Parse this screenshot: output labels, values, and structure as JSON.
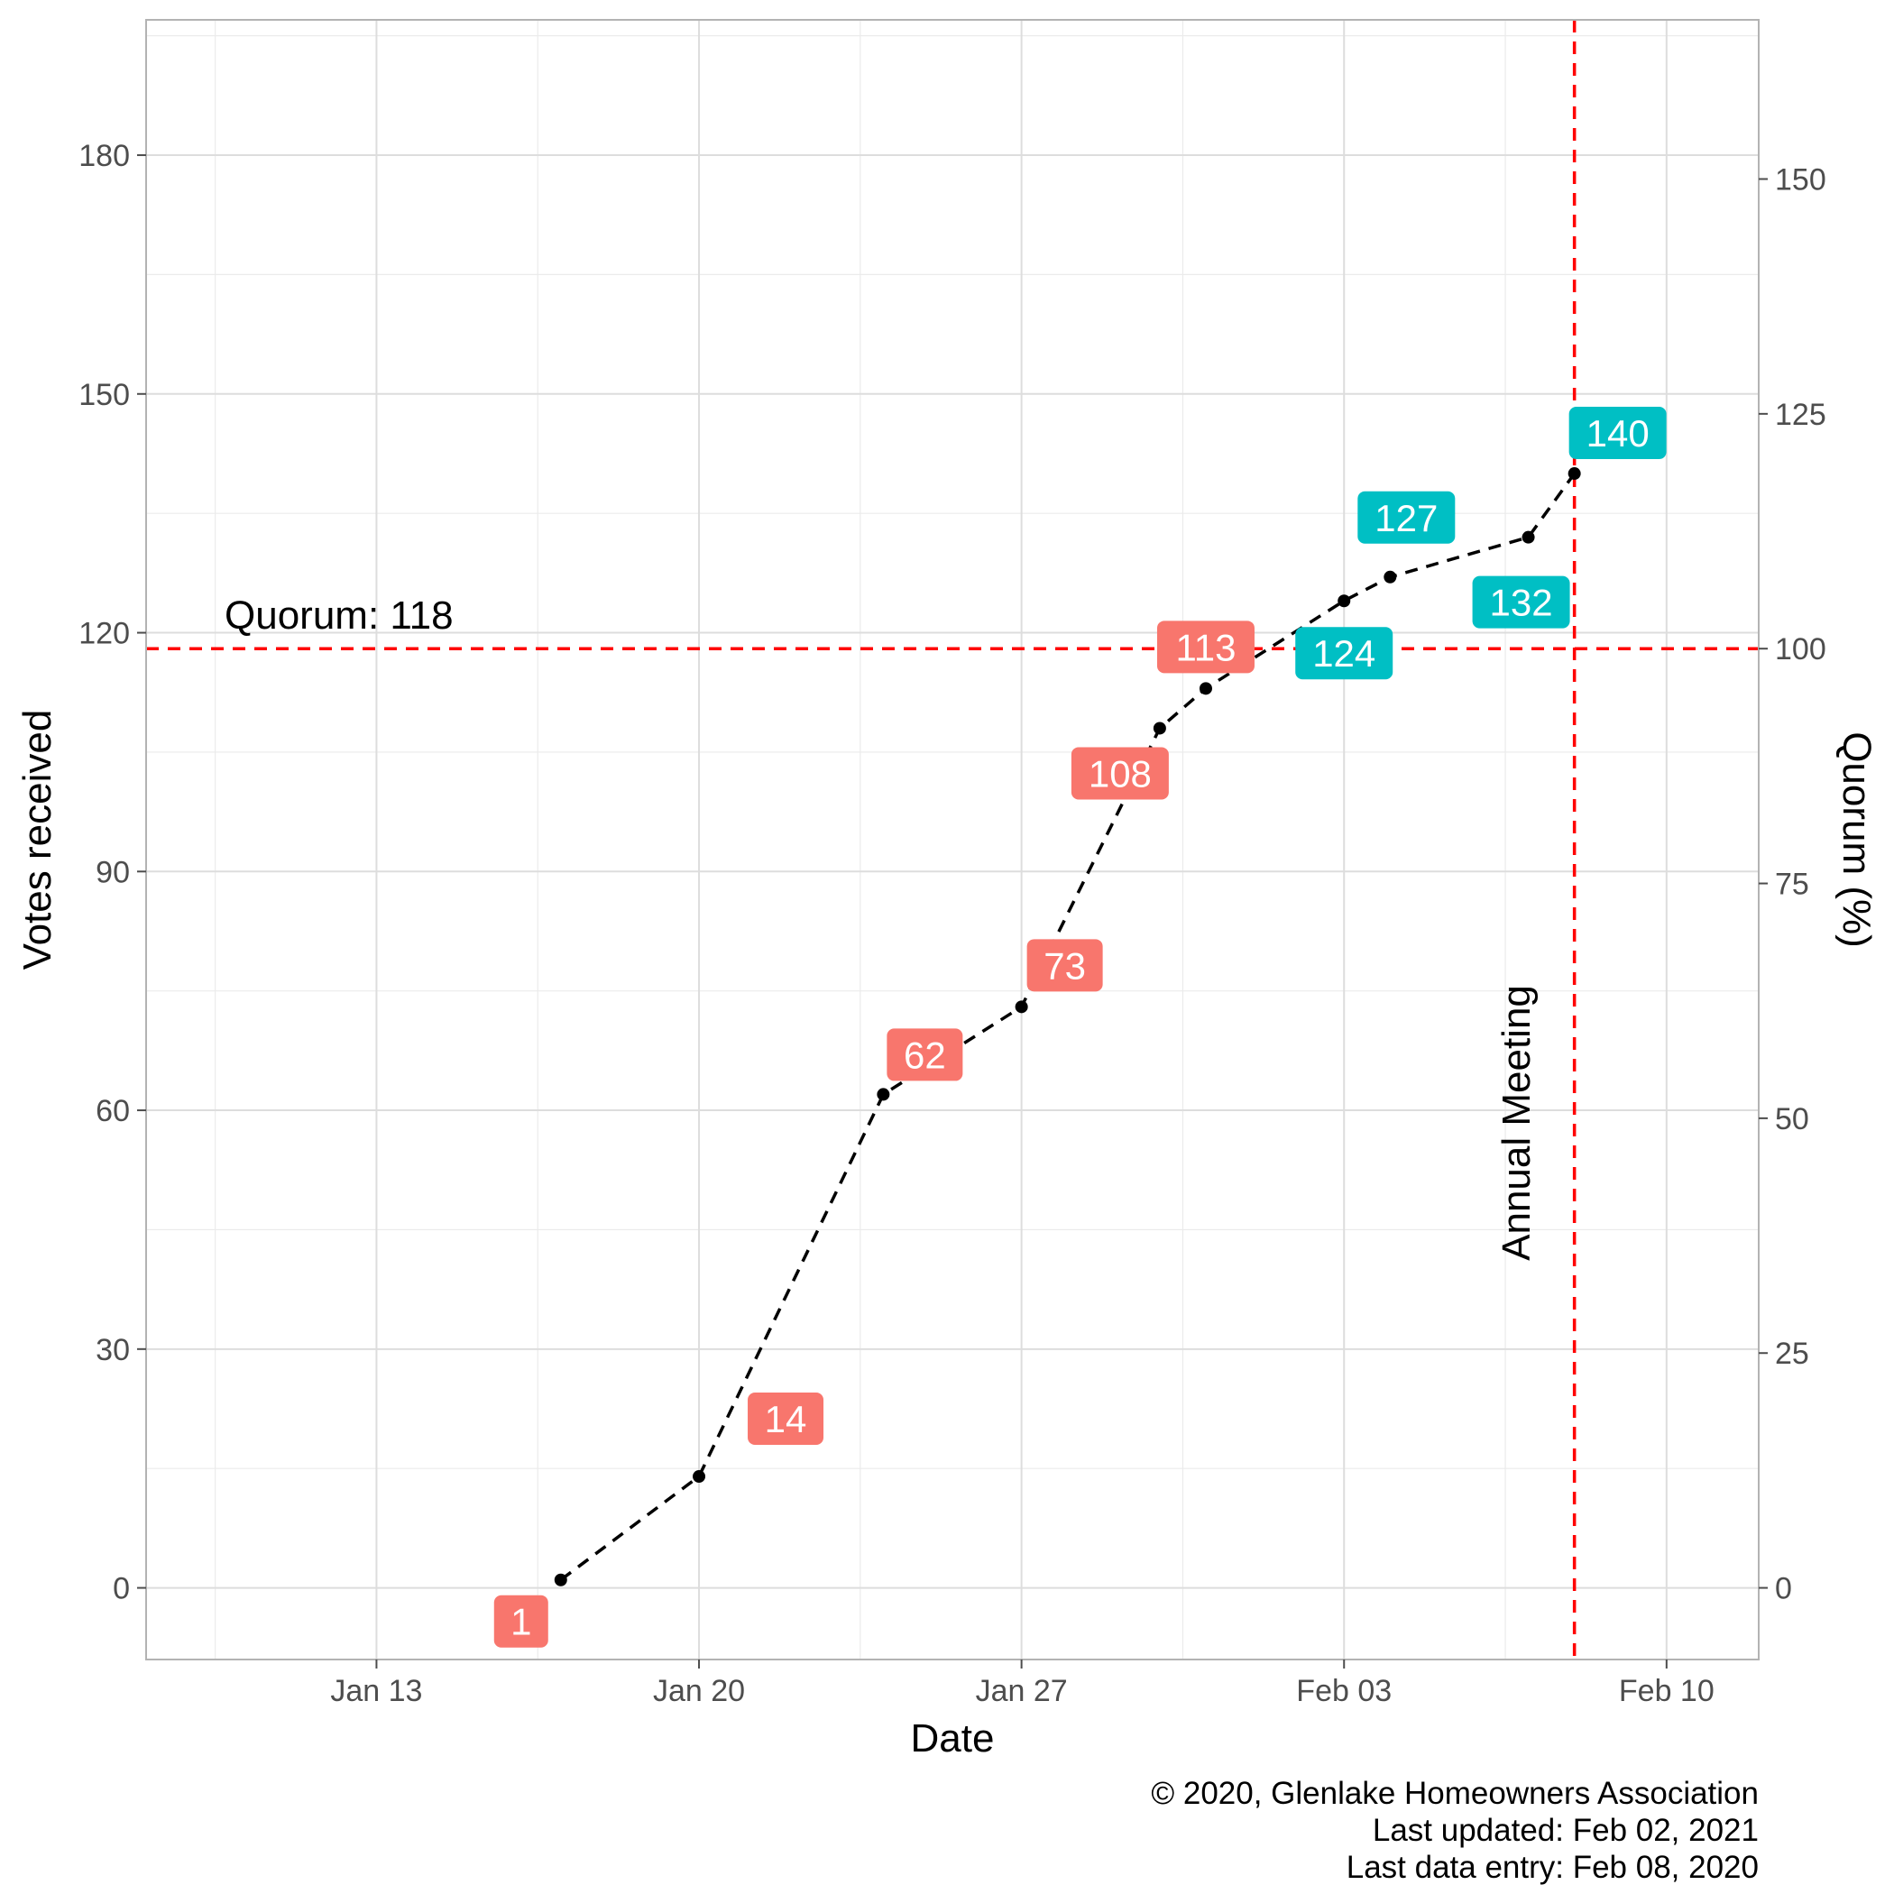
{
  "chart_data": {
    "type": "line",
    "xlabel": "Date",
    "ylabel": "Votes received",
    "y2label": "Quorum (%)",
    "x_axis_type": "date",
    "xlim": [
      "2020-01-08",
      "2020-02-12"
    ],
    "ylim": [
      -9,
      197
    ],
    "y2_scale": "percent of quorum (votes / 118 * 100)",
    "x_ticks": [
      {
        "date": "2020-01-13",
        "label": "Jan 13"
      },
      {
        "date": "2020-01-20",
        "label": "Jan 20"
      },
      {
        "date": "2020-01-27",
        "label": "Jan 27"
      },
      {
        "date": "2020-02-03",
        "label": "Feb 03"
      },
      {
        "date": "2020-02-10",
        "label": "Feb 10"
      }
    ],
    "y_ticks": [
      0,
      30,
      60,
      90,
      120,
      150,
      180
    ],
    "y2_ticks": [
      0,
      25,
      50,
      75,
      100,
      125,
      150
    ],
    "grid": true,
    "series": [
      {
        "line_style": "dashed",
        "color": "#000000",
        "points": [
          {
            "x": "2020-01-17",
            "y": 1,
            "label": "1",
            "above_quorum": false
          },
          {
            "x": "2020-01-20",
            "y": 14,
            "label": "14",
            "above_quorum": false
          },
          {
            "x": "2020-01-24",
            "y": 62,
            "label": "62",
            "above_quorum": false
          },
          {
            "x": "2020-01-27",
            "y": 73,
            "label": "73",
            "above_quorum": false
          },
          {
            "x": "2020-01-30",
            "y": 108,
            "label": "108",
            "above_quorum": false
          },
          {
            "x": "2020-01-31",
            "y": 113,
            "label": "113",
            "above_quorum": false
          },
          {
            "x": "2020-02-03",
            "y": 124,
            "label": "124",
            "above_quorum": true
          },
          {
            "x": "2020-02-04",
            "y": 127,
            "label": "127",
            "above_quorum": true
          },
          {
            "x": "2020-02-07",
            "y": 132,
            "label": "132",
            "above_quorum": true
          },
          {
            "x": "2020-02-08",
            "y": 140,
            "label": "140",
            "above_quorum": true
          }
        ]
      }
    ],
    "colors": {
      "below_quorum_label": "#F8766D",
      "above_quorum_label": "#00BFC4",
      "reference_lines": "#FF0000",
      "grid": "#EBEBEB",
      "panel_border": "#B3B3B3"
    },
    "annotations": {
      "quorum_line": {
        "y": 118,
        "text": "Quorum: 118"
      },
      "meeting_line": {
        "x": "2020-02-08",
        "text": "Annual Meeting"
      }
    },
    "caption": [
      "© 2020, Glenlake Homeowners Association",
      "Last updated: Feb 02, 2021",
      "Last data entry: Feb 08, 2020"
    ]
  }
}
